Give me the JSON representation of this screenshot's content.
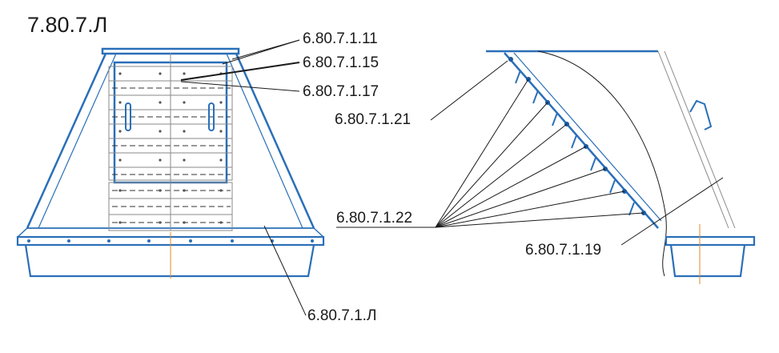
{
  "drawing": {
    "title": "7.80.7.Л"
  },
  "callouts": {
    "c_1_11": "6.80.7.1.11",
    "c_1_15": "6.80.7.1.15",
    "c_1_17": "6.80.7.1.17",
    "c_1_21": "6.80.7.1.21",
    "c_1_22": "6.80.7.1.22",
    "c_1_19": "6.80.7.1.19",
    "c_1_L": "6.80.7.1.Л"
  },
  "colors": {
    "outline": "#2a6fb8",
    "leader": "#1a1a1a"
  }
}
